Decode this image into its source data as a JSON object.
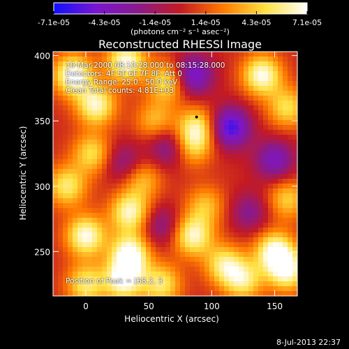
{
  "chart_data": {
    "type": "heatmap",
    "title": "Reconstructed RHESSI Image",
    "xlabel": "Heliocentric X (arcsec)",
    "ylabel": "Heliocentric Y (arcsec)",
    "xlim": [
      -26,
      168
    ],
    "ylim": [
      216,
      403
    ],
    "x_ticks": [
      0,
      50,
      100,
      150
    ],
    "y_ticks": [
      250,
      300,
      350,
      400
    ],
    "colorbar": {
      "min": -7.1e-05,
      "max": 7.1e-05,
      "tick_labels": [
        "-7.1e-05",
        "-4.3e-05",
        "-1.4e-05",
        "1.4e-05",
        "4.3e-05",
        "7.1e-05"
      ],
      "unit_label": "(photons cm⁻² s⁻¹ asec⁻²)",
      "colors": [
        "#1010ff",
        "#7a16d0",
        "#8a1a8a",
        "#c41a22",
        "#ff7a00",
        "#ffe040",
        "#ffffff"
      ]
    },
    "sources": [
      {
        "x": -10,
        "y": 385,
        "value": 7e-05
      },
      {
        "x": 8,
        "y": 362,
        "value": 6e-05
      },
      {
        "x": 32,
        "y": 395,
        "value": 6.5e-05
      },
      {
        "x": 65,
        "y": 380,
        "value": 5e-05
      },
      {
        "x": 55,
        "y": 350,
        "value": 3.5e-05
      },
      {
        "x": 88,
        "y": 345,
        "value": 5e-05
      },
      {
        "x": 140,
        "y": 385,
        "value": 6.5e-05
      },
      {
        "x": 160,
        "y": 360,
        "value": 4.5e-05
      },
      {
        "x": 5,
        "y": 325,
        "value": 4.5e-05
      },
      {
        "x": -15,
        "y": 300,
        "value": 5e-05
      },
      {
        "x": 45,
        "y": 305,
        "value": 3.5e-05
      },
      {
        "x": 35,
        "y": 280,
        "value": 6e-05
      },
      {
        "x": 0,
        "y": 262,
        "value": 6.5e-05
      },
      {
        "x": 35,
        "y": 248,
        "value": 7e-05
      },
      {
        "x": 30,
        "y": 228,
        "value": 6.5e-05
      },
      {
        "x": 85,
        "y": 262,
        "value": 6e-05
      },
      {
        "x": 110,
        "y": 240,
        "value": 5e-05
      },
      {
        "x": 95,
        "y": 285,
        "value": 3.5e-05
      },
      {
        "x": 150,
        "y": 250,
        "value": 6.5e-05
      },
      {
        "x": 160,
        "y": 235,
        "value": 6e-05
      },
      {
        "x": 125,
        "y": 228,
        "value": 5e-05
      },
      {
        "x": 160,
        "y": 290,
        "value": 4e-05
      },
      {
        "x": 60,
        "y": 225,
        "value": 5e-05
      },
      {
        "x": 0,
        "y": 225,
        "value": 5e-05
      },
      {
        "x": 85,
        "y": 330,
        "value": 3.5e-05
      },
      {
        "x": 115,
        "y": 345,
        "value": -6.5e-05
      },
      {
        "x": 85,
        "y": 385,
        "value": -5.5e-05
      },
      {
        "x": 150,
        "y": 320,
        "value": -4.5e-05
      },
      {
        "x": 65,
        "y": 330,
        "value": -3.5e-05
      },
      {
        "x": 30,
        "y": 318,
        "value": -3e-05
      },
      {
        "x": 130,
        "y": 280,
        "value": -3e-05
      },
      {
        "x": 60,
        "y": 270,
        "value": -3e-05
      }
    ],
    "peak_marker": {
      "x": 88,
      "y": 353
    }
  },
  "info": {
    "time_range": "10-Mar-2000 08:10:28.000 to 08:15:28.000",
    "detectors": "Detectors: 4F 5F 6F 7F 8F, Att 0",
    "energy_range": "Energy Range: 25.0 - 50.0 keV",
    "clean_counts": "Clean     Total counts: 4.81E+03",
    "peak_position": "Position of Peak = [68.2, 3"
  },
  "footer": {
    "date": "8-Jul-2013 22:37"
  }
}
